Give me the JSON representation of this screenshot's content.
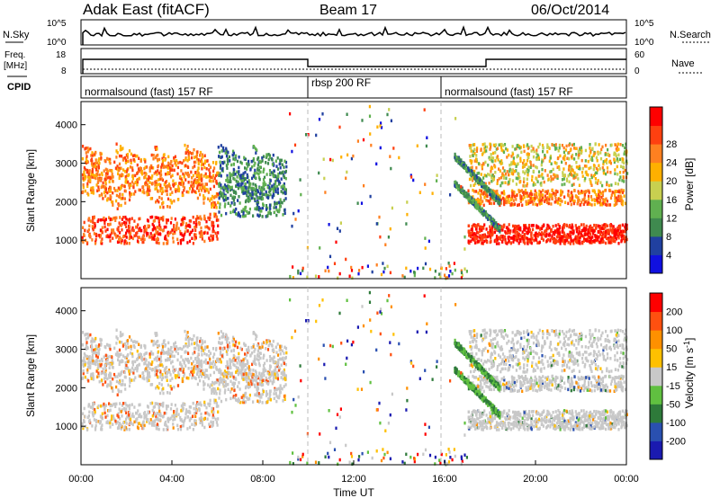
{
  "header": {
    "station": "Adak East (fitACF)",
    "beam": "Beam 17",
    "date": "06/Oct/2014"
  },
  "top_panel": {
    "left_label": "N.Sky",
    "right_label": "N.Search",
    "left_ticks": [
      "10^5",
      "10^0"
    ],
    "right_ticks": [
      "10^5",
      "10^0"
    ]
  },
  "freq_panel": {
    "left_label_1": "Freq.",
    "left_label_2": "[MHz]",
    "right_label": "Nave",
    "left_ticks": [
      "18",
      "8"
    ],
    "right_ticks": [
      "60",
      "0"
    ]
  },
  "cpid_panel": {
    "label": "CPID",
    "segments": [
      "normalsound (fast) 157 RF",
      "rbsp 200 RF",
      "normalsound (fast) 157 RF"
    ]
  },
  "colors": {
    "power_bar": [
      "#1010e0",
      "#2040a0",
      "#3f8a4f",
      "#60b050",
      "#c8d050",
      "#ffb000",
      "#ff8020",
      "#ff4010",
      "#ff0000"
    ],
    "velocity_bar": [
      "#1a1ab0",
      "#2a50b0",
      "#2e7a3a",
      "#60c040",
      "#c8c8c8",
      "#ffc000",
      "#ff9000",
      "#ff5010",
      "#ff0000"
    ]
  },
  "chart_data": [
    {
      "type": "heatmap",
      "title": "Power",
      "ylabel": "Slant Range [km]",
      "yticks": [
        "1000",
        "2000",
        "3000",
        "4000"
      ],
      "ylim": [
        0,
        4600
      ],
      "colorbar_label": "Power [dB]",
      "colorbar_ticks": [
        "4",
        "8",
        "12",
        "16",
        "20",
        "24",
        "28"
      ],
      "cpid_changes_hours": [
        10,
        16
      ]
    },
    {
      "type": "heatmap",
      "title": "Velocity",
      "ylabel": "Slant Range [km]",
      "yticks": [
        "1000",
        "2000",
        "3000",
        "4000"
      ],
      "ylim": [
        0,
        4600
      ],
      "colorbar_label": "Velocity [m s-1]",
      "colorbar_ticks": [
        "200",
        "100",
        "50",
        "15",
        "-15",
        "-50",
        "-100",
        "-200"
      ],
      "xlabel": "Time UT",
      "xticks": [
        "00:00",
        "04:00",
        "08:00",
        "12:00",
        "16:00",
        "20:00",
        "00:00"
      ],
      "xlim_hours": [
        0,
        24
      ]
    }
  ]
}
